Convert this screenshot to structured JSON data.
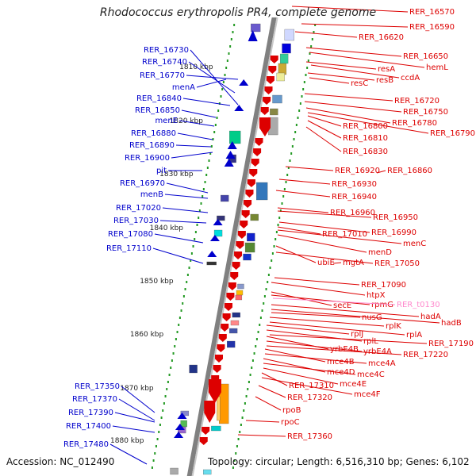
{
  "title": "Rhodococcus erythropolis PR4, complete genome",
  "accession": "Accession: NC_012490",
  "topology": "Topology: circular; Length: 6,516,310 bp; Genes: 6,102",
  "colors": {
    "left_gene": "#0000cc",
    "right_gene": "#dd0000",
    "rna_gene": "#ff88cc",
    "scale_dots": "#229922"
  },
  "scale_labels": [
    "1810 kbp",
    "1820 kbp",
    "1830 kbp",
    "1840 kbp",
    "1850 kbp",
    "1860 kbp",
    "1870 kbp",
    "1880 kbp"
  ],
  "left_genes": [
    "RER_16730",
    "RER_16740",
    "RER_16770",
    "menA",
    "RER_16840",
    "RER_16850",
    "menE",
    "RER_16880",
    "RER_16890",
    "RER_16900",
    "pit",
    "RER_16970",
    "menB",
    "RER_17020",
    "RER_17030",
    "RER_17080",
    "RER_17110",
    "RER_17350",
    "RER_17370",
    "RER_17390",
    "RER_17400",
    "RER_17480"
  ],
  "right_genes": [
    "RER_16570",
    "RER_16590",
    "RER_16620",
    "RER_16650",
    "hemL",
    "resA",
    "ccdA",
    "resB",
    "resC",
    "RER_16720",
    "RER_16750",
    "RER_16780",
    "RER_16790",
    "RER_16800",
    "RER_16810",
    "RER_16830",
    "RER_16920",
    "RER_16860",
    "RER_16930",
    "RER_16940",
    "RER_16960",
    "RER_16950",
    "RER_16990",
    "RER_17010",
    "menC",
    "menD",
    "ubiE",
    "mgtA",
    "RER_17050",
    "RER_17090",
    "htpX",
    "secE",
    "rpmG",
    "RER_t0130",
    "hadA",
    "hadB",
    "nusG",
    "rplK",
    "rplA",
    "rplJ",
    "rplL",
    "RER_17190",
    "yrbE4B",
    "yrbE4A",
    "RER_17220",
    "mce4B",
    "mce4A",
    "mce4D",
    "mce4C",
    "mce4E",
    "RER_17310",
    "mce4F",
    "RER_17320",
    "rpoB",
    "rpoC",
    "RER_17360"
  ]
}
